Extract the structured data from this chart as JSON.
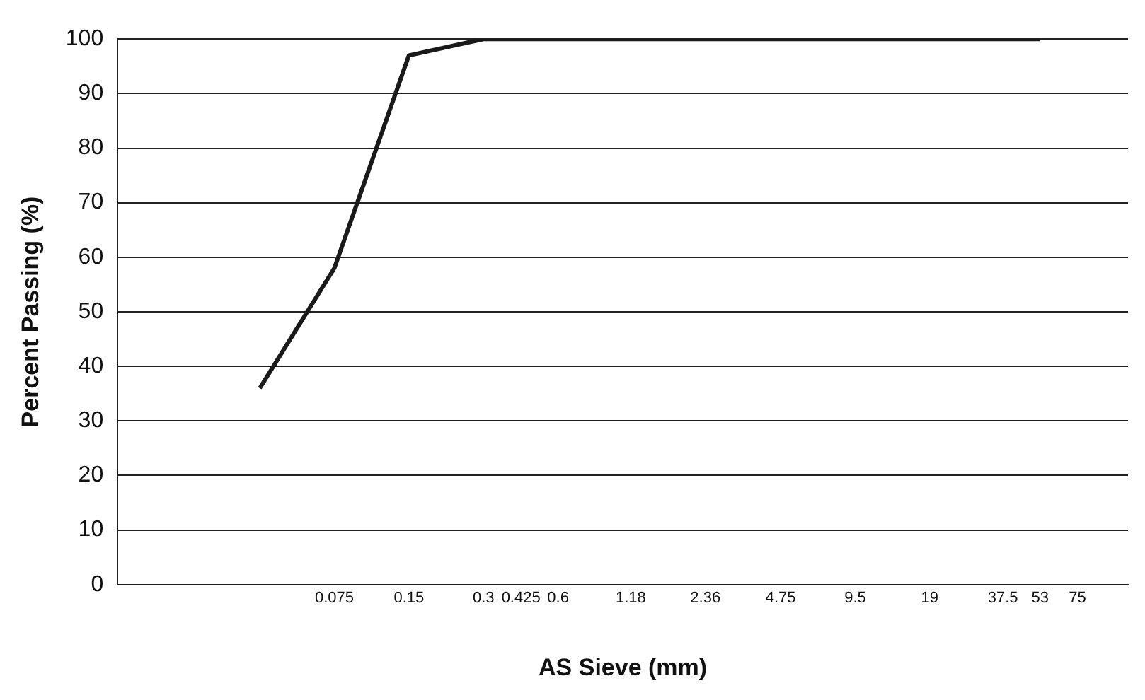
{
  "chart_data": {
    "type": "line",
    "xlabel": "AS Sieve (mm)",
    "ylabel": "Percent Passing (%)",
    "x": [
      0.0375,
      0.075,
      0.15,
      0.3,
      0.425,
      0.6,
      1.18,
      2.36,
      4.75,
      9.5,
      19,
      37.5,
      53
    ],
    "series": [
      {
        "color": "#1a1a1a",
        "values": [
          36,
          58,
          97,
          100,
          100,
          100,
          100,
          100,
          100,
          100,
          100,
          100,
          100
        ]
      }
    ],
    "log": "x",
    "xlim": [
      0.01,
      120
    ],
    "xticks": [
      0.075,
      0.15,
      0.3,
      0.425,
      0.6,
      1.18,
      2.36,
      4.75,
      9.5,
      19,
      37.5,
      53,
      75
    ],
    "ylim": [
      0,
      100
    ],
    "yticks": [
      0,
      10,
      20,
      30,
      40,
      50,
      60,
      70,
      80,
      90,
      100
    ],
    "grid": "y",
    "legend": false,
    "marker": "none",
    "line_style": "solid"
  }
}
